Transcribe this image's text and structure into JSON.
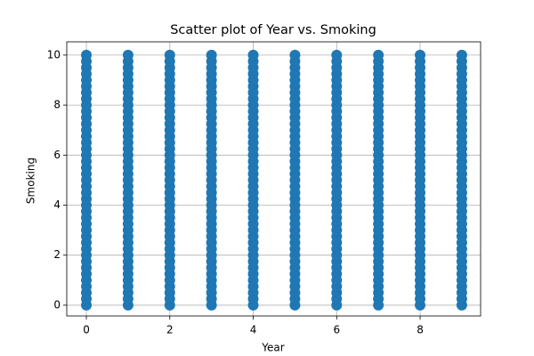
{
  "chart_data": {
    "type": "scatter",
    "title": "Scatter plot of Year vs. Smoking",
    "x_label": "Year",
    "y_label": "Smoking",
    "color": "#1f77b4",
    "grid": true,
    "xlim": [
      -0.47,
      9.45
    ],
    "ylim": [
      -0.43,
      10.53
    ],
    "xticks": [
      0,
      2,
      4,
      6,
      8
    ],
    "yticks": [
      0,
      2,
      4,
      6,
      8,
      10
    ],
    "x": [
      0,
      0,
      0,
      0,
      0,
      0,
      0,
      0,
      0,
      0,
      0,
      0,
      0,
      0,
      0,
      0,
      0,
      0,
      0,
      0,
      0,
      0,
      0,
      0,
      0,
      0,
      0,
      0,
      0,
      0,
      0,
      0,
      0,
      0,
      0,
      0,
      0,
      0,
      0,
      0,
      0,
      1,
      1,
      1,
      1,
      1,
      1,
      1,
      1,
      1,
      1,
      1,
      1,
      1,
      1,
      1,
      1,
      1,
      1,
      1,
      1,
      1,
      1,
      1,
      1,
      1,
      1,
      1,
      1,
      1,
      1,
      1,
      1,
      1,
      1,
      1,
      1,
      1,
      1,
      1,
      1,
      1,
      2,
      2,
      2,
      2,
      2,
      2,
      2,
      2,
      2,
      2,
      2,
      2,
      2,
      2,
      2,
      2,
      2,
      2,
      2,
      2,
      2,
      2,
      2,
      2,
      2,
      2,
      2,
      2,
      2,
      2,
      2,
      2,
      2,
      2,
      2,
      2,
      2,
      2,
      2,
      2,
      2,
      3,
      3,
      3,
      3,
      3,
      3,
      3,
      3,
      3,
      3,
      3,
      3,
      3,
      3,
      3,
      3,
      3,
      3,
      3,
      3,
      3,
      3,
      3,
      3,
      3,
      3,
      3,
      3,
      3,
      3,
      3,
      3,
      3,
      3,
      3,
      3,
      3,
      3,
      3,
      3,
      3,
      4,
      4,
      4,
      4,
      4,
      4,
      4,
      4,
      4,
      4,
      4,
      4,
      4,
      4,
      4,
      4,
      4,
      4,
      4,
      4,
      4,
      4,
      4,
      4,
      4,
      4,
      4,
      4,
      4,
      4,
      4,
      4,
      4,
      4,
      4,
      4,
      4,
      4,
      4,
      4,
      4,
      5,
      5,
      5,
      5,
      5,
      5,
      5,
      5,
      5,
      5,
      5,
      5,
      5,
      5,
      5,
      5,
      5,
      5,
      5,
      5,
      5,
      5,
      5,
      5,
      5,
      5,
      5,
      5,
      5,
      5,
      5,
      5,
      5,
      5,
      5,
      5,
      5,
      5,
      5,
      5,
      5,
      6,
      6,
      6,
      6,
      6,
      6,
      6,
      6,
      6,
      6,
      6,
      6,
      6,
      6,
      6,
      6,
      6,
      6,
      6,
      6,
      6,
      6,
      6,
      6,
      6,
      6,
      6,
      6,
      6,
      6,
      6,
      6,
      6,
      6,
      6,
      6,
      6,
      6,
      6,
      6,
      6,
      7,
      7,
      7,
      7,
      7,
      7,
      7,
      7,
      7,
      7,
      7,
      7,
      7,
      7,
      7,
      7,
      7,
      7,
      7,
      7,
      7,
      7,
      7,
      7,
      7,
      7,
      7,
      7,
      7,
      7,
      7,
      7,
      7,
      7,
      7,
      7,
      7,
      7,
      7,
      7,
      7,
      8,
      8,
      8,
      8,
      8,
      8,
      8,
      8,
      8,
      8,
      8,
      8,
      8,
      8,
      8,
      8,
      8,
      8,
      8,
      8,
      8,
      8,
      8,
      8,
      8,
      8,
      8,
      8,
      8,
      8,
      8,
      8,
      8,
      8,
      8,
      8,
      8,
      8,
      8,
      8,
      8,
      9,
      9,
      9,
      9,
      9,
      9,
      9,
      9,
      9,
      9,
      9,
      9,
      9,
      9,
      9,
      9,
      9,
      9,
      9,
      9,
      9,
      9,
      9,
      9,
      9,
      9,
      9,
      9,
      9,
      9,
      9,
      9,
      9,
      9,
      9,
      9,
      9,
      9,
      9,
      9,
      9
    ],
    "y": [
      0,
      0.25,
      0.5,
      0.75,
      1,
      1.25,
      1.5,
      1.75,
      2,
      2.25,
      2.5,
      2.75,
      3,
      3.25,
      3.5,
      3.75,
      4,
      4.25,
      4.5,
      4.75,
      5,
      5.25,
      5.5,
      5.75,
      6,
      6.25,
      6.5,
      6.75,
      7,
      7.25,
      7.5,
      7.75,
      8,
      8.25,
      8.5,
      8.75,
      9,
      9.25,
      9.5,
      9.75,
      10,
      0,
      0.25,
      0.5,
      0.75,
      1,
      1.25,
      1.5,
      1.75,
      2,
      2.25,
      2.5,
      2.75,
      3,
      3.25,
      3.5,
      3.75,
      4,
      4.25,
      4.5,
      4.75,
      5,
      5.25,
      5.5,
      5.75,
      6,
      6.25,
      6.5,
      6.75,
      7,
      7.25,
      7.5,
      7.75,
      8,
      8.25,
      8.5,
      8.75,
      9,
      9.25,
      9.5,
      9.75,
      10,
      0,
      0.25,
      0.5,
      0.75,
      1,
      1.25,
      1.5,
      1.75,
      2,
      2.25,
      2.5,
      2.75,
      3,
      3.25,
      3.5,
      3.75,
      4,
      4.25,
      4.5,
      4.75,
      5,
      5.25,
      5.5,
      5.75,
      6,
      6.25,
      6.5,
      6.75,
      7,
      7.25,
      7.5,
      7.75,
      8,
      8.25,
      8.5,
      8.75,
      9,
      9.25,
      9.5,
      9.75,
      10,
      0,
      0.25,
      0.5,
      0.75,
      1,
      1.25,
      1.5,
      1.75,
      2,
      2.25,
      2.5,
      2.75,
      3,
      3.25,
      3.5,
      3.75,
      4,
      4.25,
      4.5,
      4.75,
      5,
      5.25,
      5.5,
      5.75,
      6,
      6.25,
      6.5,
      6.75,
      7,
      7.25,
      7.5,
      7.75,
      8,
      8.25,
      8.5,
      8.75,
      9,
      9.25,
      9.5,
      9.75,
      10,
      0,
      0.25,
      0.5,
      0.75,
      1,
      1.25,
      1.5,
      1.75,
      2,
      2.25,
      2.5,
      2.75,
      3,
      3.25,
      3.5,
      3.75,
      4,
      4.25,
      4.5,
      4.75,
      5,
      5.25,
      5.5,
      5.75,
      6,
      6.25,
      6.5,
      6.75,
      7,
      7.25,
      7.5,
      7.75,
      8,
      8.25,
      8.5,
      8.75,
      9,
      9.25,
      9.5,
      9.75,
      10,
      0,
      0.25,
      0.5,
      0.75,
      1,
      1.25,
      1.5,
      1.75,
      2,
      2.25,
      2.5,
      2.75,
      3,
      3.25,
      3.5,
      3.75,
      4,
      4.25,
      4.5,
      4.75,
      5,
      5.25,
      5.5,
      5.75,
      6,
      6.25,
      6.5,
      6.75,
      7,
      7.25,
      7.5,
      7.75,
      8,
      8.25,
      8.5,
      8.75,
      9,
      9.25,
      9.5,
      9.75,
      10,
      0,
      0.25,
      0.5,
      0.75,
      1,
      1.25,
      1.5,
      1.75,
      2,
      2.25,
      2.5,
      2.75,
      3,
      3.25,
      3.5,
      3.75,
      4,
      4.25,
      4.5,
      4.75,
      5,
      5.25,
      5.5,
      5.75,
      6,
      6.25,
      6.5,
      6.75,
      7,
      7.25,
      7.5,
      7.75,
      8,
      8.25,
      8.5,
      8.75,
      9,
      9.25,
      9.5,
      9.75,
      10,
      0,
      0.25,
      0.5,
      0.75,
      1,
      1.25,
      1.5,
      1.75,
      2,
      2.25,
      2.5,
      2.75,
      3,
      3.25,
      3.5,
      3.75,
      4,
      4.25,
      4.5,
      4.75,
      5,
      5.25,
      5.5,
      5.75,
      6,
      6.25,
      6.5,
      6.75,
      7,
      7.25,
      7.5,
      7.75,
      8,
      8.25,
      8.5,
      8.75,
      9,
      9.25,
      9.5,
      9.75,
      10,
      0,
      0.25,
      0.5,
      0.75,
      1,
      1.25,
      1.5,
      1.75,
      2,
      2.25,
      2.5,
      2.75,
      3,
      3.25,
      3.5,
      3.75,
      4,
      4.25,
      4.5,
      4.75,
      5,
      5.25,
      5.5,
      5.75,
      6,
      6.25,
      6.5,
      6.75,
      7,
      7.25,
      7.5,
      7.75,
      8,
      8.25,
      8.5,
      8.75,
      9,
      9.25,
      9.5,
      9.75,
      10,
      0,
      0.25,
      0.5,
      0.75,
      1,
      1.25,
      1.5,
      1.75,
      2,
      2.25,
      2.5,
      2.75,
      3,
      3.25,
      3.5,
      3.75,
      4,
      4.25,
      4.5,
      4.75,
      5,
      5.25,
      5.5,
      5.75,
      6,
      6.25,
      6.5,
      6.75,
      7,
      7.25,
      7.5,
      7.75,
      8,
      8.25,
      8.5,
      8.75,
      9,
      9.25,
      9.5,
      9.75,
      10
    ]
  }
}
